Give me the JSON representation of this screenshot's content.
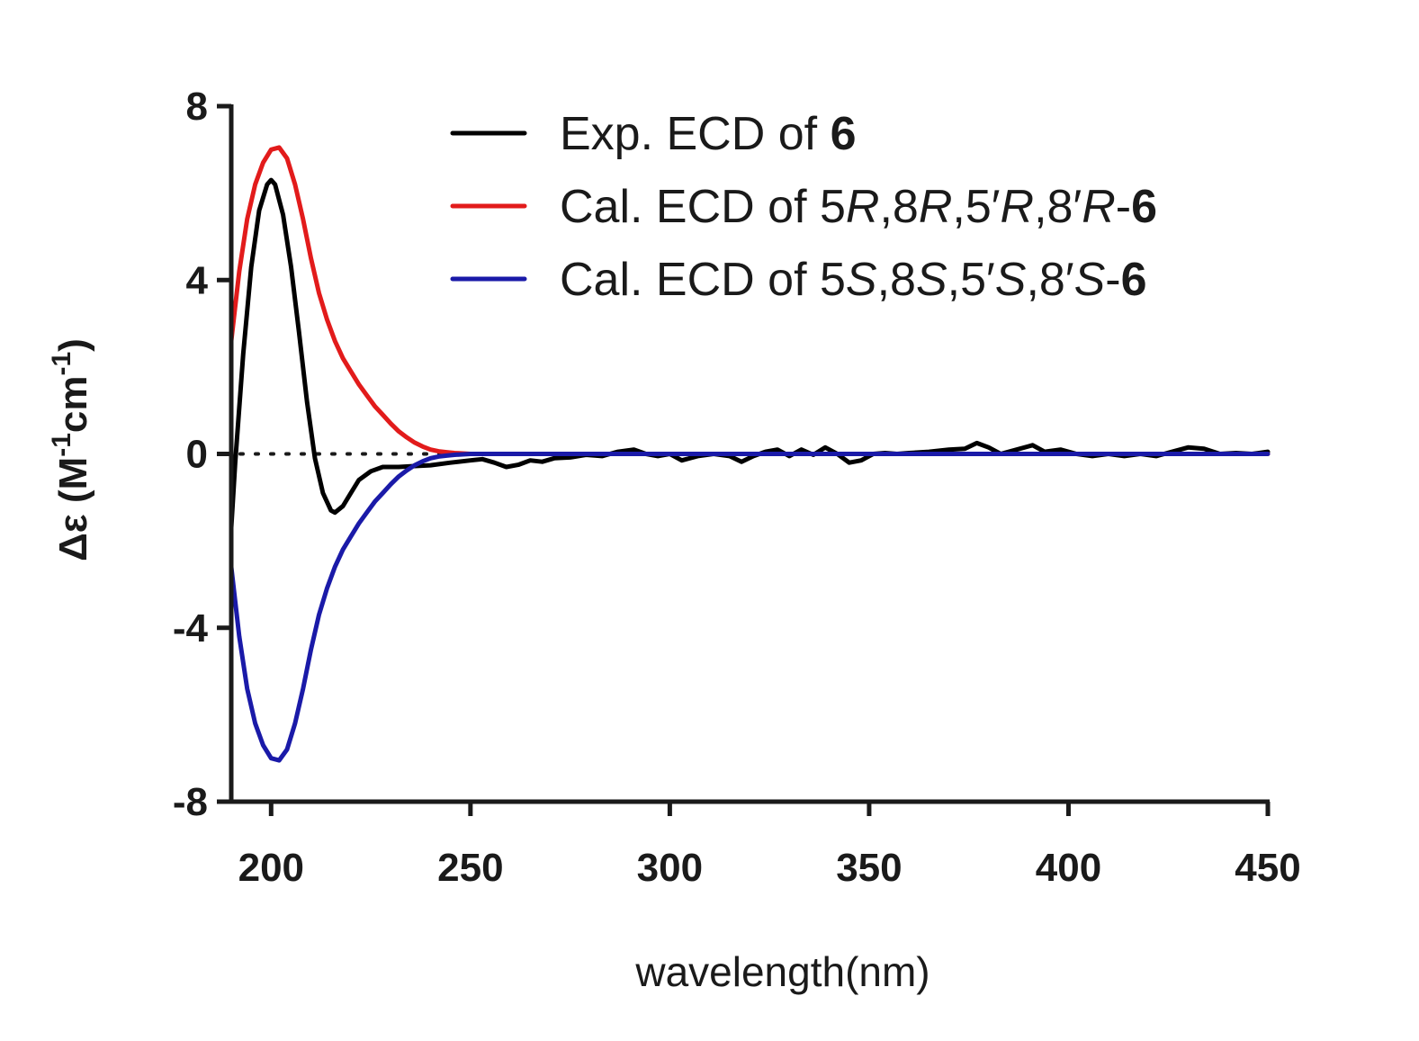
{
  "chart_data": {
    "type": "line",
    "xlabel": "wavelength(nm)",
    "ylabel": {
      "prefix": "Δε (M",
      "sup1": "-1",
      "mid": "cm",
      "sup2": "-1",
      "suffix": ")"
    },
    "xlim": [
      190,
      450
    ],
    "ylim": [
      -8,
      8
    ],
    "xticks": [
      200,
      250,
      300,
      350,
      400,
      450
    ],
    "yticks": [
      8,
      4,
      0,
      -4,
      -8
    ],
    "zero_line": "dotted",
    "legend_position": "top-right",
    "series": [
      {
        "name": "exp",
        "color": "#000000",
        "legend_parts": [
          {
            "text": "Exp.  ECD of ",
            "style": "normal"
          },
          {
            "text": "6",
            "style": "bold"
          }
        ],
        "x": [
          190,
          191,
          193,
          195,
          197,
          199,
          200,
          201,
          203,
          205,
          207,
          209,
          211,
          213,
          215,
          216,
          218,
          220,
          222,
          225,
          228,
          232,
          236,
          240,
          245,
          250,
          253,
          256,
          259,
          262,
          265,
          268,
          271,
          275,
          279,
          283,
          287,
          291,
          294,
          297,
          300,
          303,
          307,
          311,
          315,
          318,
          321,
          324,
          327,
          330,
          333,
          336,
          339,
          342,
          345,
          348,
          351,
          354,
          357,
          360,
          365,
          370,
          374,
          377,
          380,
          383,
          387,
          391,
          394,
          398,
          402,
          406,
          410,
          414,
          418,
          422,
          426,
          430,
          434,
          438,
          442,
          446,
          450
        ],
        "y": [
          -1.7,
          -0.2,
          2.3,
          4.3,
          5.6,
          6.2,
          6.3,
          6.2,
          5.5,
          4.3,
          2.8,
          1.2,
          -0.1,
          -0.9,
          -1.3,
          -1.35,
          -1.2,
          -0.9,
          -0.6,
          -0.4,
          -0.3,
          -0.3,
          -0.28,
          -0.26,
          -0.2,
          -0.15,
          -0.12,
          -0.2,
          -0.3,
          -0.25,
          -0.15,
          -0.18,
          -0.1,
          -0.08,
          -0.02,
          -0.05,
          0.05,
          0.1,
          0.0,
          -0.05,
          0.0,
          -0.15,
          -0.05,
          0.0,
          -0.05,
          -0.18,
          -0.05,
          0.05,
          0.1,
          -0.05,
          0.1,
          -0.02,
          0.15,
          0.0,
          -0.2,
          -0.15,
          0.0,
          0.02,
          0.0,
          0.02,
          0.05,
          0.1,
          0.12,
          0.25,
          0.15,
          0.0,
          0.1,
          0.2,
          0.05,
          0.1,
          0.0,
          -0.05,
          0.0,
          -0.05,
          0.0,
          -0.05,
          0.05,
          0.15,
          0.12,
          0.0,
          0.02,
          0.0,
          0.05
        ]
      },
      {
        "name": "cal-R",
        "color": "#e21b1b",
        "legend_parts": [
          {
            "text": "Cal. ECD of 5",
            "style": "normal"
          },
          {
            "text": "R",
            "style": "italic"
          },
          {
            "text": ",8",
            "style": "normal"
          },
          {
            "text": "R",
            "style": "italic"
          },
          {
            "text": ",5′",
            "style": "normal"
          },
          {
            "text": "R",
            "style": "italic"
          },
          {
            "text": ",8′",
            "style": "normal"
          },
          {
            "text": "R",
            "style": "italic"
          },
          {
            "text": "-",
            "style": "normal"
          },
          {
            "text": "6",
            "style": "bold"
          }
        ],
        "x": [
          190,
          192,
          194,
          196,
          198,
          200,
          202,
          204,
          206,
          208,
          210,
          212,
          214,
          216,
          218,
          220,
          222,
          224,
          226,
          228,
          230,
          232,
          234,
          236,
          238,
          240,
          242,
          244,
          246,
          250,
          260,
          280,
          300,
          350,
          400,
          450
        ],
        "y": [
          2.6,
          4.2,
          5.4,
          6.2,
          6.7,
          7.0,
          7.05,
          6.8,
          6.2,
          5.4,
          4.5,
          3.7,
          3.1,
          2.6,
          2.2,
          1.9,
          1.6,
          1.35,
          1.1,
          0.9,
          0.7,
          0.52,
          0.38,
          0.26,
          0.17,
          0.1,
          0.06,
          0.04,
          0.02,
          0.0,
          0.0,
          0.0,
          0.0,
          0.0,
          0.0,
          0.0
        ]
      },
      {
        "name": "cal-S",
        "color": "#1a1aa8",
        "legend_parts": [
          {
            "text": "Cal. ECD of 5",
            "style": "normal"
          },
          {
            "text": "S",
            "style": "italic"
          },
          {
            "text": ",8",
            "style": "normal"
          },
          {
            "text": "S",
            "style": "italic"
          },
          {
            "text": ",5′",
            "style": "normal"
          },
          {
            "text": "S",
            "style": "italic"
          },
          {
            "text": ",8′",
            "style": "normal"
          },
          {
            "text": "S",
            "style": "italic"
          },
          {
            "text": "-",
            "style": "normal"
          },
          {
            "text": "6",
            "style": "bold"
          }
        ],
        "x": [
          190,
          192,
          194,
          196,
          198,
          200,
          202,
          204,
          206,
          208,
          210,
          212,
          214,
          216,
          218,
          220,
          222,
          224,
          226,
          228,
          230,
          232,
          234,
          236,
          238,
          240,
          242,
          244,
          246,
          250,
          260,
          280,
          300,
          350,
          400,
          450
        ],
        "y": [
          -2.6,
          -4.2,
          -5.4,
          -6.2,
          -6.7,
          -7.0,
          -7.05,
          -6.8,
          -6.2,
          -5.4,
          -4.5,
          -3.7,
          -3.1,
          -2.6,
          -2.2,
          -1.9,
          -1.6,
          -1.35,
          -1.1,
          -0.9,
          -0.7,
          -0.52,
          -0.38,
          -0.26,
          -0.17,
          -0.1,
          -0.06,
          -0.04,
          -0.02,
          0.0,
          0.0,
          0.0,
          0.0,
          0.0,
          0.0,
          0.0
        ]
      }
    ]
  }
}
